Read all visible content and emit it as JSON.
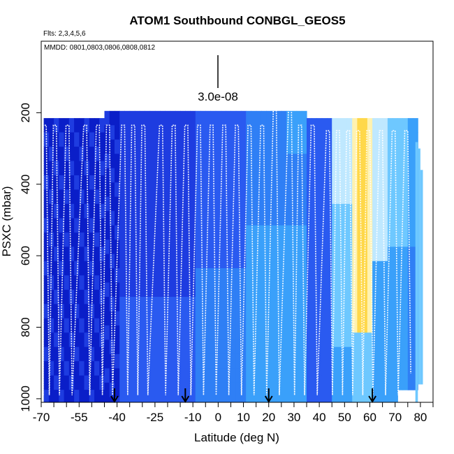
{
  "chart_data": {
    "type": "heatmap",
    "title": "ATOM1 Southbound CONBGL_GEOS5",
    "flights_note": "Flts: 2,3,4,5,6",
    "dates_note": "MMDD: 0801,0803,0806,0808,0812",
    "scale_value_label": "3.0e-08",
    "xlabel": "Latitude (deg N)",
    "ylabel": "PSXC (mbar)",
    "xlim": [
      -70,
      85
    ],
    "ylim": [
      1010,
      0
    ],
    "x_ticks": [
      "-70",
      "-55",
      "-40",
      "-25",
      "-10",
      "0",
      "10",
      "20",
      "30",
      "40",
      "50",
      "60",
      "70",
      "80"
    ],
    "y_ticks": [
      "200",
      "400",
      "600",
      "800",
      "1000"
    ],
    "arrow_latitudes": [
      -41,
      -13,
      20,
      61
    ],
    "field_colors": [
      "#0a1ec8",
      "#1e3ce0",
      "#2a5af0",
      "#2f7ff5",
      "#3aa0fa",
      "#6ec8ff",
      "#bfe8ff",
      "#fff2b0",
      "#ffd84a"
    ],
    "background": "#ffffff"
  }
}
